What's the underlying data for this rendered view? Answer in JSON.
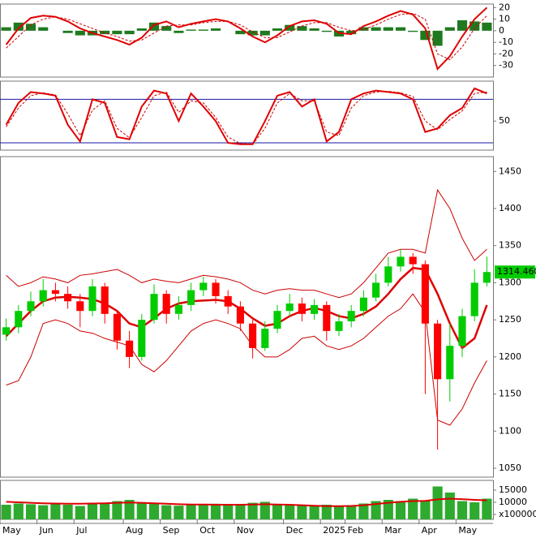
{
  "chart_data": [
    {
      "type": "macd",
      "ylim": [
        -40,
        23
      ],
      "yticks": [
        -30,
        -20,
        -10,
        0,
        10,
        20
      ],
      "series": [
        {
          "kind": "bar",
          "color": "#1f7a1f",
          "values": [
            3,
            7,
            6,
            3,
            0,
            -2,
            -4,
            -4,
            -3,
            -3,
            -3,
            2,
            7,
            4,
            -2,
            1,
            1,
            2,
            0,
            -3,
            -4,
            -4,
            2,
            5,
            4,
            2,
            -1,
            -5,
            -3,
            3,
            3,
            3,
            3,
            -1,
            -8,
            -13,
            3,
            9,
            8,
            7
          ]
        },
        {
          "kind": "line",
          "color": "#cc0000",
          "dash": true,
          "values": [
            -15,
            -5,
            5,
            10,
            12,
            10,
            6,
            2,
            -2,
            -5,
            -9,
            -8,
            -2,
            4,
            5,
            5,
            7,
            8,
            8,
            5,
            -1,
            -6,
            -6,
            -1,
            4,
            7,
            7,
            3,
            0,
            1,
            5,
            10,
            14,
            15,
            10,
            -20,
            -25,
            -14,
            2,
            13
          ]
        },
        {
          "kind": "line",
          "color": "#e00000",
          "dash": false,
          "values": [
            -12,
            2,
            11,
            13,
            12,
            8,
            2,
            -2,
            -5,
            -8,
            -12,
            -6,
            5,
            8,
            3,
            6,
            8,
            10,
            8,
            2,
            -5,
            -10,
            -4,
            4,
            8,
            9,
            6,
            -2,
            -3,
            4,
            8,
            13,
            17,
            14,
            2,
            -33,
            -22,
            -5,
            10,
            20
          ]
        }
      ]
    },
    {
      "type": "stochastic",
      "ylim": [
        10,
        105
      ],
      "yticks": [
        50
      ],
      "hlines": [
        80,
        20
      ],
      "hline_color": "#1a1aa6",
      "series": [
        {
          "kind": "line",
          "color": "#cc0000",
          "dash": true,
          "values": [
            42,
            68,
            85,
            89,
            86,
            60,
            30,
            65,
            78,
            40,
            27,
            55,
            85,
            90,
            62,
            78,
            75,
            55,
            28,
            19,
            18,
            40,
            75,
            88,
            78,
            78,
            35,
            30,
            68,
            85,
            90,
            91,
            89,
            84,
            50,
            38,
            52,
            64,
            88,
            90
          ]
        },
        {
          "kind": "line",
          "color": "#e00000",
          "dash": false,
          "values": [
            45,
            75,
            90,
            88,
            85,
            45,
            22,
            80,
            75,
            28,
            25,
            70,
            92,
            88,
            50,
            88,
            70,
            50,
            20,
            18,
            18,
            50,
            85,
            90,
            70,
            80,
            22,
            35,
            80,
            88,
            92,
            90,
            88,
            80,
            35,
            40,
            58,
            68,
            95,
            88
          ]
        }
      ]
    },
    {
      "type": "candlestick",
      "ylim": [
        1038,
        1470
      ],
      "yticks": [
        1050,
        1100,
        1150,
        1200,
        1250,
        1300,
        1350,
        1400,
        1450
      ],
      "up_color": "#00cc00",
      "down_color": "#ff0000",
      "open": [
        1230,
        1240,
        1262,
        1275,
        1290,
        1285,
        1275,
        1262,
        1295,
        1258,
        1222,
        1200,
        1250,
        1285,
        1258,
        1270,
        1290,
        1300,
        1282,
        1268,
        1245,
        1212,
        1238,
        1262,
        1272,
        1258,
        1270,
        1235,
        1248,
        1262,
        1280,
        1300,
        1322,
        1335,
        1325,
        1245,
        1170,
        1215,
        1255,
        1300
      ],
      "high": [
        1252,
        1270,
        1288,
        1305,
        1300,
        1295,
        1285,
        1305,
        1300,
        1262,
        1235,
        1258,
        1298,
        1290,
        1282,
        1300,
        1308,
        1305,
        1290,
        1275,
        1250,
        1248,
        1270,
        1285,
        1280,
        1278,
        1275,
        1258,
        1270,
        1290,
        1312,
        1335,
        1345,
        1340,
        1330,
        1250,
        1245,
        1265,
        1318,
        1335
      ],
      "low": [
        1222,
        1232,
        1255,
        1268,
        1275,
        1265,
        1240,
        1255,
        1245,
        1210,
        1185,
        1195,
        1245,
        1245,
        1250,
        1262,
        1282,
        1272,
        1258,
        1235,
        1198,
        1208,
        1232,
        1255,
        1248,
        1250,
        1222,
        1228,
        1240,
        1255,
        1275,
        1295,
        1315,
        1312,
        1150,
        1075,
        1140,
        1200,
        1248,
        1295
      ],
      "close": [
        1240,
        1262,
        1275,
        1290,
        1285,
        1275,
        1262,
        1295,
        1258,
        1222,
        1200,
        1250,
        1285,
        1258,
        1270,
        1290,
        1300,
        1282,
        1268,
        1245,
        1212,
        1238,
        1262,
        1272,
        1258,
        1270,
        1235,
        1248,
        1262,
        1280,
        1300,
        1322,
        1335,
        1325,
        1245,
        1170,
        1215,
        1255,
        1300,
        1314.46
      ],
      "overlays": [
        {
          "color": "#cc0000",
          "width": 1,
          "values": [
            1310,
            1295,
            1300,
            1308,
            1305,
            1300,
            1310,
            1312,
            1315,
            1318,
            1310,
            1300,
            1305,
            1302,
            1300,
            1305,
            1310,
            1308,
            1305,
            1300,
            1290,
            1285,
            1290,
            1292,
            1290,
            1290,
            1285,
            1280,
            1285,
            1300,
            1320,
            1340,
            1345,
            1345,
            1340,
            1425,
            1400,
            1360,
            1330,
            1345
          ]
        },
        {
          "color": "#cc0000",
          "width": 1,
          "values": [
            1162,
            1168,
            1200,
            1245,
            1250,
            1245,
            1235,
            1232,
            1225,
            1220,
            1215,
            1190,
            1180,
            1195,
            1215,
            1235,
            1245,
            1250,
            1245,
            1238,
            1215,
            1200,
            1200,
            1210,
            1225,
            1228,
            1215,
            1210,
            1215,
            1225,
            1240,
            1255,
            1265,
            1285,
            1260,
            1115,
            1108,
            1130,
            1165,
            1195
          ]
        },
        {
          "color": "#dd0000",
          "width": 2.5,
          "values": [
            1228,
            1245,
            1262,
            1275,
            1280,
            1281,
            1280,
            1278,
            1272,
            1262,
            1245,
            1240,
            1252,
            1265,
            1272,
            1275,
            1276,
            1277,
            1275,
            1265,
            1252,
            1242,
            1245,
            1255,
            1262,
            1266,
            1262,
            1255,
            1252,
            1258,
            1268,
            1285,
            1305,
            1320,
            1318,
            1285,
            1245,
            1212,
            1225,
            1270
          ]
        }
      ],
      "last_price": {
        "value": 1314.46,
        "label": "1314.460"
      },
      "last_price_color": "#00cc00"
    },
    {
      "type": "volume",
      "ylim": [
        3000,
        19000
      ],
      "yticks": [
        {
          "value": 5000,
          "label": "x100000"
        },
        10000,
        15000
      ],
      "color": "#2eaa2e",
      "ma_color": "#dd0000",
      "values": [
        9000,
        9500,
        9200,
        8800,
        9600,
        9000,
        8500,
        9800,
        9400,
        10500,
        11000,
        9800,
        9500,
        8800,
        8600,
        9200,
        9000,
        9400,
        8800,
        9000,
        9800,
        10200,
        9000,
        8900,
        8700,
        8600,
        9000,
        8500,
        8800,
        9500,
        10500,
        11000,
        10500,
        11500,
        10800,
        16500,
        14000,
        10500,
        10000,
        11500
      ],
      "ma": [
        10200,
        10000,
        9800,
        9600,
        9500,
        9400,
        9400,
        9500,
        9600,
        9800,
        9900,
        9800,
        9600,
        9400,
        9200,
        9100,
        9100,
        9000,
        9000,
        9000,
        9100,
        9200,
        9100,
        9000,
        8800,
        8600,
        8400,
        8400,
        8500,
        8800,
        9300,
        9800,
        10200,
        10500,
        10600,
        11200,
        11500,
        11300,
        11000,
        10800
      ],
      "categories": [
        "May",
        null,
        null,
        "Jun",
        null,
        null,
        "Jul",
        null,
        null,
        null,
        "Aug",
        null,
        null,
        "Sep",
        null,
        null,
        "Oct",
        null,
        null,
        "Nov",
        null,
        null,
        null,
        "Dec",
        null,
        null,
        "2025",
        null,
        "Feb",
        null,
        null,
        "Mar",
        null,
        null,
        "Apr",
        null,
        null,
        "May",
        null,
        null
      ]
    }
  ]
}
